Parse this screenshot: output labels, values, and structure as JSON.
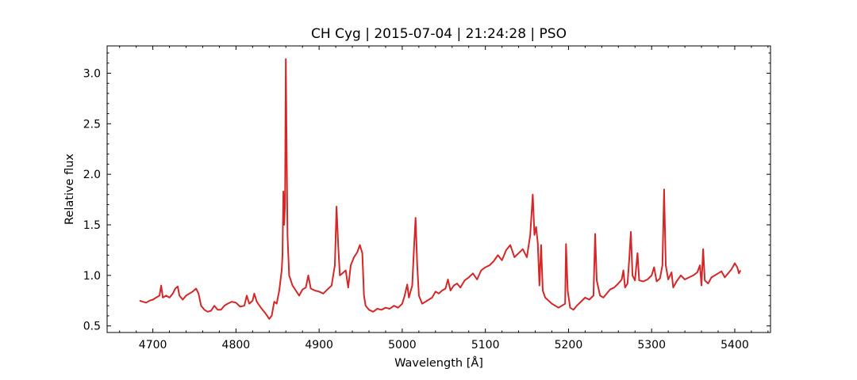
{
  "chart_data": {
    "type": "line",
    "title": "CH Cyg | 2015-07-04 | 21:24:28 | PSO",
    "xlabel": "Wavelength [Å]",
    "ylabel": "Relative flux",
    "xlim": [
      4645,
      5443
    ],
    "ylim": [
      0.435,
      3.27
    ],
    "xticks": [
      4700,
      4800,
      4900,
      5000,
      5100,
      5200,
      5300,
      5400
    ],
    "yticks": [
      0.5,
      1.0,
      1.5,
      2.0,
      2.5,
      3.0
    ],
    "xtick_labels": [
      "4700",
      "4800",
      "4900",
      "5000",
      "5100",
      "5200",
      "5300",
      "5400"
    ],
    "ytick_labels": [
      "0.5",
      "1.0",
      "1.5",
      "2.0",
      "2.5",
      "3.0"
    ],
    "grid": false,
    "colors": {
      "series": "#d62728",
      "axes": "#000000"
    },
    "series": [
      {
        "points": [
          [
            4684,
            0.75
          ],
          [
            4688,
            0.74
          ],
          [
            4692,
            0.73
          ],
          [
            4696,
            0.75
          ],
          [
            4700,
            0.76
          ],
          [
            4704,
            0.78
          ],
          [
            4708,
            0.8
          ],
          [
            4710,
            0.9
          ],
          [
            4712,
            0.78
          ],
          [
            4716,
            0.8
          ],
          [
            4720,
            0.78
          ],
          [
            4724,
            0.82
          ],
          [
            4727,
            0.87
          ],
          [
            4730,
            0.89
          ],
          [
            4732,
            0.8
          ],
          [
            4736,
            0.76
          ],
          [
            4740,
            0.8
          ],
          [
            4744,
            0.82
          ],
          [
            4748,
            0.84
          ],
          [
            4752,
            0.87
          ],
          [
            4755,
            0.82
          ],
          [
            4758,
            0.7
          ],
          [
            4762,
            0.66
          ],
          [
            4766,
            0.64
          ],
          [
            4770,
            0.65
          ],
          [
            4774,
            0.7
          ],
          [
            4778,
            0.66
          ],
          [
            4782,
            0.66
          ],
          [
            4786,
            0.7
          ],
          [
            4790,
            0.72
          ],
          [
            4795,
            0.74
          ],
          [
            4800,
            0.73
          ],
          [
            4805,
            0.69
          ],
          [
            4810,
            0.7
          ],
          [
            4813,
            0.8
          ],
          [
            4816,
            0.72
          ],
          [
            4820,
            0.75
          ],
          [
            4822,
            0.82
          ],
          [
            4825,
            0.74
          ],
          [
            4830,
            0.68
          ],
          [
            4835,
            0.63
          ],
          [
            4840,
            0.57
          ],
          [
            4843,
            0.6
          ],
          [
            4846,
            0.74
          ],
          [
            4849,
            0.72
          ],
          [
            4852,
            0.85
          ],
          [
            4855,
            1.05
          ],
          [
            4856,
            1.2
          ],
          [
            4857,
            1.83
          ],
          [
            4858,
            1.5
          ],
          [
            4859,
            1.7
          ],
          [
            4860,
            3.14
          ],
          [
            4861,
            2.2
          ],
          [
            4862,
            1.4
          ],
          [
            4864,
            1.0
          ],
          [
            4868,
            0.9
          ],
          [
            4872,
            0.85
          ],
          [
            4876,
            0.8
          ],
          [
            4880,
            0.86
          ],
          [
            4884,
            0.88
          ],
          [
            4887,
            1.0
          ],
          [
            4890,
            0.87
          ],
          [
            4895,
            0.85
          ],
          [
            4900,
            0.84
          ],
          [
            4905,
            0.82
          ],
          [
            4910,
            0.86
          ],
          [
            4915,
            0.9
          ],
          [
            4919,
            1.1
          ],
          [
            4921,
            1.68
          ],
          [
            4923,
            1.3
          ],
          [
            4925,
            1.0
          ],
          [
            4928,
            1.02
          ],
          [
            4932,
            1.05
          ],
          [
            4935,
            0.88
          ],
          [
            4938,
            1.1
          ],
          [
            4942,
            1.18
          ],
          [
            4946,
            1.23
          ],
          [
            4949,
            1.3
          ],
          [
            4952,
            1.22
          ],
          [
            4954,
            0.8
          ],
          [
            4956,
            0.7
          ],
          [
            4960,
            0.66
          ],
          [
            4965,
            0.64
          ],
          [
            4970,
            0.67
          ],
          [
            4975,
            0.66
          ],
          [
            4980,
            0.68
          ],
          [
            4985,
            0.67
          ],
          [
            4990,
            0.7
          ],
          [
            4995,
            0.68
          ],
          [
            5000,
            0.72
          ],
          [
            5003,
            0.8
          ],
          [
            5006,
            0.91
          ],
          [
            5008,
            0.78
          ],
          [
            5012,
            0.9
          ],
          [
            5014,
            1.25
          ],
          [
            5016,
            1.57
          ],
          [
            5018,
            1.1
          ],
          [
            5020,
            0.8
          ],
          [
            5024,
            0.72
          ],
          [
            5028,
            0.74
          ],
          [
            5032,
            0.76
          ],
          [
            5036,
            0.78
          ],
          [
            5040,
            0.84
          ],
          [
            5044,
            0.82
          ],
          [
            5048,
            0.85
          ],
          [
            5052,
            0.87
          ],
          [
            5055,
            0.96
          ],
          [
            5058,
            0.85
          ],
          [
            5062,
            0.9
          ],
          [
            5066,
            0.92
          ],
          [
            5070,
            0.88
          ],
          [
            5075,
            0.95
          ],
          [
            5080,
            0.98
          ],
          [
            5085,
            1.02
          ],
          [
            5090,
            0.96
          ],
          [
            5095,
            1.05
          ],
          [
            5100,
            1.08
          ],
          [
            5105,
            1.1
          ],
          [
            5110,
            1.14
          ],
          [
            5115,
            1.2
          ],
          [
            5120,
            1.15
          ],
          [
            5125,
            1.25
          ],
          [
            5130,
            1.3
          ],
          [
            5135,
            1.18
          ],
          [
            5140,
            1.22
          ],
          [
            5145,
            1.26
          ],
          [
            5150,
            1.18
          ],
          [
            5154,
            1.4
          ],
          [
            5157,
            1.8
          ],
          [
            5159,
            1.4
          ],
          [
            5161,
            1.48
          ],
          [
            5163,
            1.32
          ],
          [
            5165,
            0.9
          ],
          [
            5167,
            1.3
          ],
          [
            5169,
            0.85
          ],
          [
            5172,
            0.78
          ],
          [
            5176,
            0.75
          ],
          [
            5180,
            0.72
          ],
          [
            5184,
            0.7
          ],
          [
            5188,
            0.68
          ],
          [
            5192,
            0.7
          ],
          [
            5196,
            0.72
          ],
          [
            5197,
            1.31
          ],
          [
            5199,
            0.85
          ],
          [
            5202,
            0.68
          ],
          [
            5206,
            0.66
          ],
          [
            5210,
            0.7
          ],
          [
            5215,
            0.74
          ],
          [
            5220,
            0.78
          ],
          [
            5225,
            0.76
          ],
          [
            5230,
            0.8
          ],
          [
            5232,
            1.41
          ],
          [
            5234,
            0.95
          ],
          [
            5238,
            0.8
          ],
          [
            5242,
            0.78
          ],
          [
            5246,
            0.82
          ],
          [
            5250,
            0.86
          ],
          [
            5255,
            0.88
          ],
          [
            5260,
            0.92
          ],
          [
            5264,
            0.96
          ],
          [
            5266,
            1.05
          ],
          [
            5268,
            0.88
          ],
          [
            5271,
            0.92
          ],
          [
            5273,
            1.15
          ],
          [
            5275,
            1.43
          ],
          [
            5277,
            1.0
          ],
          [
            5280,
            0.95
          ],
          [
            5283,
            1.22
          ],
          [
            5285,
            0.95
          ],
          [
            5290,
            0.94
          ],
          [
            5295,
            0.96
          ],
          [
            5300,
            1.0
          ],
          [
            5303,
            1.08
          ],
          [
            5306,
            0.94
          ],
          [
            5310,
            0.97
          ],
          [
            5313,
            1.1
          ],
          [
            5315,
            1.85
          ],
          [
            5317,
            1.1
          ],
          [
            5320,
            0.96
          ],
          [
            5324,
            1.03
          ],
          [
            5326,
            0.88
          ],
          [
            5330,
            0.94
          ],
          [
            5335,
            1.0
          ],
          [
            5340,
            0.96
          ],
          [
            5345,
            0.98
          ],
          [
            5350,
            1.0
          ],
          [
            5355,
            1.03
          ],
          [
            5358,
            1.1
          ],
          [
            5360,
            0.9
          ],
          [
            5362,
            1.26
          ],
          [
            5364,
            0.95
          ],
          [
            5368,
            0.92
          ],
          [
            5372,
            0.98
          ],
          [
            5376,
            1.0
          ],
          [
            5380,
            1.02
          ],
          [
            5384,
            1.04
          ],
          [
            5388,
            0.98
          ],
          [
            5392,
            1.02
          ],
          [
            5396,
            1.06
          ],
          [
            5400,
            1.12
          ],
          [
            5403,
            1.08
          ],
          [
            5405,
            1.02
          ],
          [
            5407,
            1.05
          ]
        ]
      }
    ]
  }
}
